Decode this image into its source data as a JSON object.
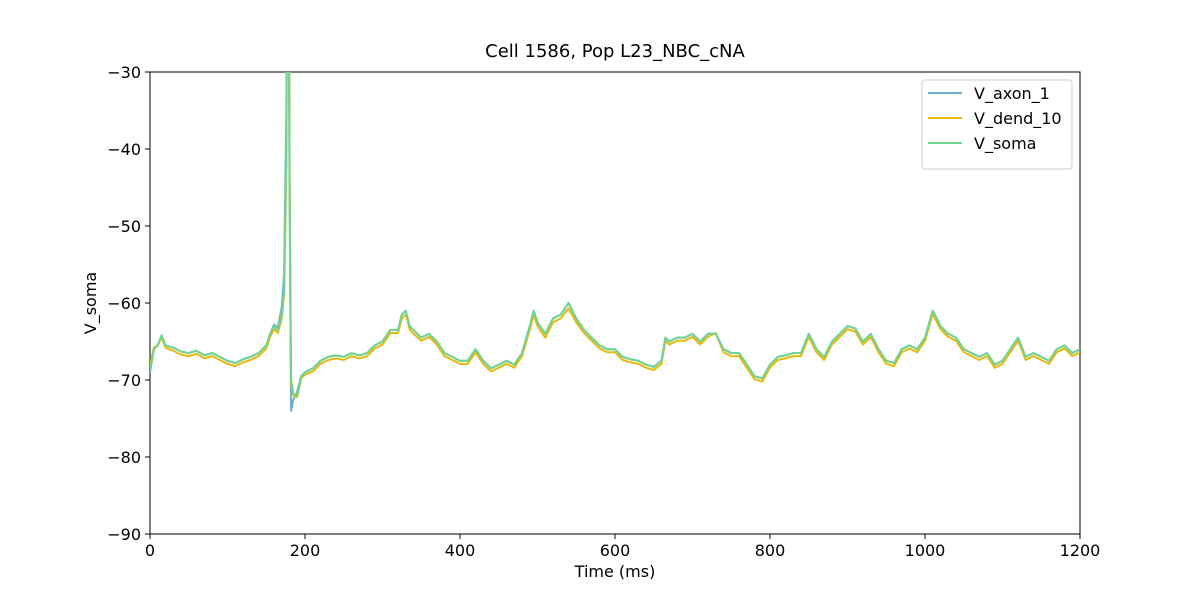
{
  "chart_data": {
    "type": "line",
    "title": "Cell 1586, Pop L23_NBC_cNA",
    "x_label": "Time (ms)",
    "y_label": "V_soma",
    "x": [
      0,
      5,
      10,
      15,
      20,
      30,
      40,
      50,
      60,
      70,
      80,
      90,
      100,
      110,
      120,
      130,
      140,
      150,
      155,
      160,
      165,
      170,
      173,
      176,
      178,
      180,
      182,
      185,
      190,
      195,
      200,
      210,
      220,
      230,
      240,
      250,
      260,
      270,
      280,
      290,
      300,
      310,
      320,
      325,
      330,
      335,
      340,
      350,
      360,
      370,
      380,
      390,
      400,
      410,
      420,
      430,
      440,
      450,
      460,
      470,
      480,
      490,
      495,
      500,
      510,
      520,
      530,
      540,
      550,
      560,
      570,
      580,
      590,
      600,
      610,
      620,
      630,
      640,
      650,
      660,
      665,
      670,
      680,
      690,
      700,
      710,
      720,
      730,
      740,
      750,
      760,
      770,
      780,
      790,
      800,
      810,
      820,
      830,
      840,
      850,
      860,
      870,
      880,
      890,
      900,
      910,
      920,
      930,
      940,
      950,
      960,
      970,
      980,
      990,
      1000,
      1010,
      1020,
      1030,
      1040,
      1050,
      1060,
      1070,
      1080,
      1090,
      1100,
      1110,
      1120,
      1130,
      1140,
      1150,
      1160,
      1170,
      1180,
      1190,
      1200
    ],
    "series": [
      {
        "name": "V_axon_1",
        "color": "#6baed6",
        "values": [
          -69,
          -66,
          -65.5,
          -64.2,
          -65.5,
          -65.8,
          -66.3,
          -66.5,
          -66.2,
          -66.8,
          -66.5,
          -67,
          -67.5,
          -67.8,
          -67.3,
          -67,
          -66.5,
          -65.5,
          -64,
          -62.8,
          -63.2,
          -60.5,
          -56.3,
          -35,
          25,
          -45,
          -74,
          -72.5,
          -71.5,
          -69.5,
          -69,
          -68.5,
          -67.5,
          -67,
          -66.8,
          -67,
          -66.5,
          -66.8,
          -66.5,
          -65.5,
          -65,
          -63.5,
          -63.5,
          -61.5,
          -61,
          -63,
          -63.5,
          -64.5,
          -64,
          -65,
          -66.5,
          -67,
          -67.5,
          -67.5,
          -66,
          -67.5,
          -68.5,
          -68,
          -67.5,
          -68,
          -66.5,
          -63,
          -61,
          -62.5,
          -64,
          -62,
          -61.5,
          -60,
          -62,
          -63.5,
          -64.5,
          -65.5,
          -66,
          -66,
          -67,
          -67.3,
          -67.5,
          -68,
          -68.3,
          -67.5,
          -64.5,
          -65,
          -64.5,
          -64.5,
          -64,
          -65,
          -64,
          -64,
          -66,
          -66.5,
          -66.5,
          -68,
          -69.5,
          -69.8,
          -68,
          -67,
          -66.8,
          -66.5,
          -66.5,
          -64,
          -66,
          -67,
          -65,
          -64,
          -63,
          -63.3,
          -65,
          -64,
          -66,
          -67.5,
          -67.8,
          -66,
          -65.5,
          -66,
          -64.5,
          -61,
          -63,
          -64,
          -64.5,
          -66,
          -66.5,
          -67,
          -66.5,
          -68,
          -67.5,
          -66,
          -64.5,
          -67,
          -66.5,
          -67,
          -67.5,
          -66,
          -65.5,
          -66.5,
          -66
        ]
      },
      {
        "name": "V_dend_10",
        "color": "#e8b90c",
        "values": [
          -68,
          -65.8,
          -65.5,
          -64.5,
          -65.8,
          -66.2,
          -66.7,
          -66.9,
          -66.6,
          -67.2,
          -66.9,
          -67.4,
          -67.9,
          -68.2,
          -67.7,
          -67.4,
          -66.9,
          -65.9,
          -64.4,
          -63.4,
          -63.9,
          -62,
          -59,
          -42,
          15,
          -42,
          -70.5,
          -72,
          -72.2,
          -69.8,
          -69.3,
          -68.9,
          -67.9,
          -67.4,
          -67.2,
          -67.4,
          -66.9,
          -67.2,
          -66.9,
          -65.9,
          -65.4,
          -63.9,
          -63.9,
          -62,
          -61.5,
          -63.4,
          -64,
          -64.9,
          -64.4,
          -65.4,
          -66.9,
          -67.4,
          -67.9,
          -67.9,
          -66.4,
          -67.9,
          -68.9,
          -68.4,
          -67.9,
          -68.4,
          -66.9,
          -63.5,
          -61.5,
          -63,
          -64.5,
          -62.5,
          -62,
          -60.7,
          -62.5,
          -63.9,
          -64.9,
          -65.9,
          -66.4,
          -66.4,
          -67.4,
          -67.7,
          -67.9,
          -68.4,
          -68.7,
          -67.9,
          -64.9,
          -65.4,
          -64.9,
          -64.9,
          -64.4,
          -65.4,
          -64.4,
          -63.9,
          -66.4,
          -66.9,
          -66.9,
          -68.4,
          -69.9,
          -70.2,
          -68.4,
          -67.4,
          -67.2,
          -66.9,
          -66.9,
          -64.4,
          -66.4,
          -67.4,
          -65.4,
          -64.4,
          -63.4,
          -63.7,
          -65.4,
          -64.4,
          -66.4,
          -67.9,
          -68.2,
          -66.4,
          -65.9,
          -66.4,
          -64.9,
          -61.4,
          -63.4,
          -64.4,
          -64.9,
          -66.4,
          -66.9,
          -67.4,
          -66.9,
          -68.4,
          -67.9,
          -66.4,
          -64.9,
          -67.4,
          -66.9,
          -67.4,
          -67.9,
          -66.4,
          -65.9,
          -66.9,
          -66.4
        ]
      },
      {
        "name": "V_soma",
        "color": "#6fd48f",
        "values": [
          -69,
          -66,
          -65.5,
          -64.2,
          -65.5,
          -65.8,
          -66.3,
          -66.5,
          -66.2,
          -66.8,
          -66.5,
          -67,
          -67.5,
          -67.8,
          -67.3,
          -67,
          -66.5,
          -65.5,
          -64,
          -63,
          -63.5,
          -61.5,
          -58.5,
          -40,
          20,
          -40,
          -70,
          -71.8,
          -72,
          -69.5,
          -69,
          -68.5,
          -67.5,
          -67,
          -66.8,
          -67,
          -66.5,
          -66.8,
          -66.5,
          -65.5,
          -65,
          -63.5,
          -63.5,
          -61.5,
          -61,
          -63,
          -63.5,
          -64.5,
          -64,
          -65,
          -66.5,
          -67,
          -67.5,
          -67.5,
          -66,
          -67.5,
          -68.5,
          -68,
          -67.5,
          -68,
          -66.5,
          -63,
          -61,
          -62.5,
          -64,
          -62,
          -61.5,
          -60,
          -62,
          -63.5,
          -64.5,
          -65.5,
          -66,
          -66,
          -67,
          -67.3,
          -67.5,
          -68,
          -68.3,
          -67.5,
          -64.5,
          -65,
          -64.5,
          -64.5,
          -64,
          -65,
          -64,
          -64,
          -66,
          -66.5,
          -66.5,
          -68,
          -69.5,
          -69.8,
          -68,
          -67,
          -66.8,
          -66.5,
          -66.5,
          -64,
          -66,
          -67,
          -65,
          -64,
          -63,
          -63.3,
          -65,
          -64,
          -66,
          -67.5,
          -67.8,
          -66,
          -65.5,
          -66,
          -64.5,
          -61,
          -63,
          -64,
          -64.5,
          -66,
          -66.5,
          -67,
          -66.5,
          -68,
          -67.5,
          -66,
          -64.5,
          -67,
          -66.5,
          -67,
          -67.5,
          -66,
          -65.5,
          -66.5,
          -66
        ]
      }
    ],
    "xlim": [
      0,
      1200
    ],
    "xticks": [
      0,
      200,
      400,
      600,
      800,
      1000,
      1200
    ],
    "ylim": [
      -90,
      -30
    ],
    "yticks": [
      {
        "value": -90,
        "label": "−90"
      },
      {
        "value": -80,
        "label": "−80"
      },
      {
        "value": -70,
        "label": "−70"
      },
      {
        "value": -60,
        "label": "−60"
      },
      {
        "value": -50,
        "label": "−50"
      },
      {
        "value": -40,
        "label": "−40"
      },
      {
        "value": -30,
        "label": "−30"
      }
    ],
    "legend": "upper right"
  }
}
